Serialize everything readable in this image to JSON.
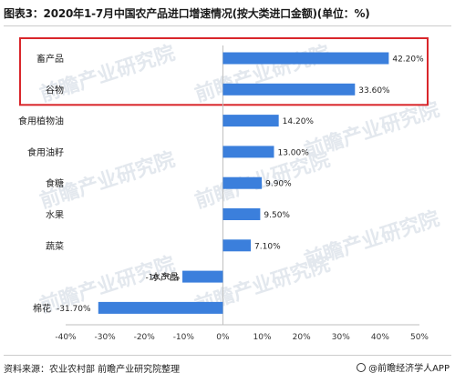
{
  "chart_data": {
    "type": "bar",
    "orientation": "horizontal",
    "title": "图表3：2020年1-7月中国农产品进口增速情况(按大类进口金额)(单位：%)",
    "categories": [
      "畜产品",
      "谷物",
      "食用植物油",
      "食用油籽",
      "食糖",
      "水果",
      "蔬菜",
      "水产品",
      "棉花"
    ],
    "values": [
      42.2,
      33.6,
      14.2,
      13.0,
      9.9,
      9.5,
      7.1,
      -10.3,
      -31.7
    ],
    "value_labels": [
      "42.20%",
      "33.60%",
      "14.20%",
      "13.00%",
      "9.90%",
      "9.50%",
      "7.10%",
      "-10.30%",
      "-31.70%"
    ],
    "xlim": [
      -40,
      50
    ],
    "xticks": [
      -40,
      -30,
      -20,
      -10,
      0,
      10,
      20,
      30,
      40,
      50
    ],
    "tick_labels": [
      "-40%",
      "-30%",
      "-20%",
      "-10%",
      "0%",
      "10%",
      "20%",
      "30%",
      "40%",
      "50%"
    ],
    "bar_color": "#3b7fdc",
    "highlight_color": "#d9262b",
    "highlight_categories": [
      "畜产品",
      "谷物"
    ],
    "grid": false,
    "legend": "none"
  },
  "footer": {
    "source": "资料来源：农业农村部  前瞻产业研究院整理",
    "brand": "@前瞻经济学人APP"
  },
  "watermark": {
    "text": "前瞻产业研究院"
  }
}
